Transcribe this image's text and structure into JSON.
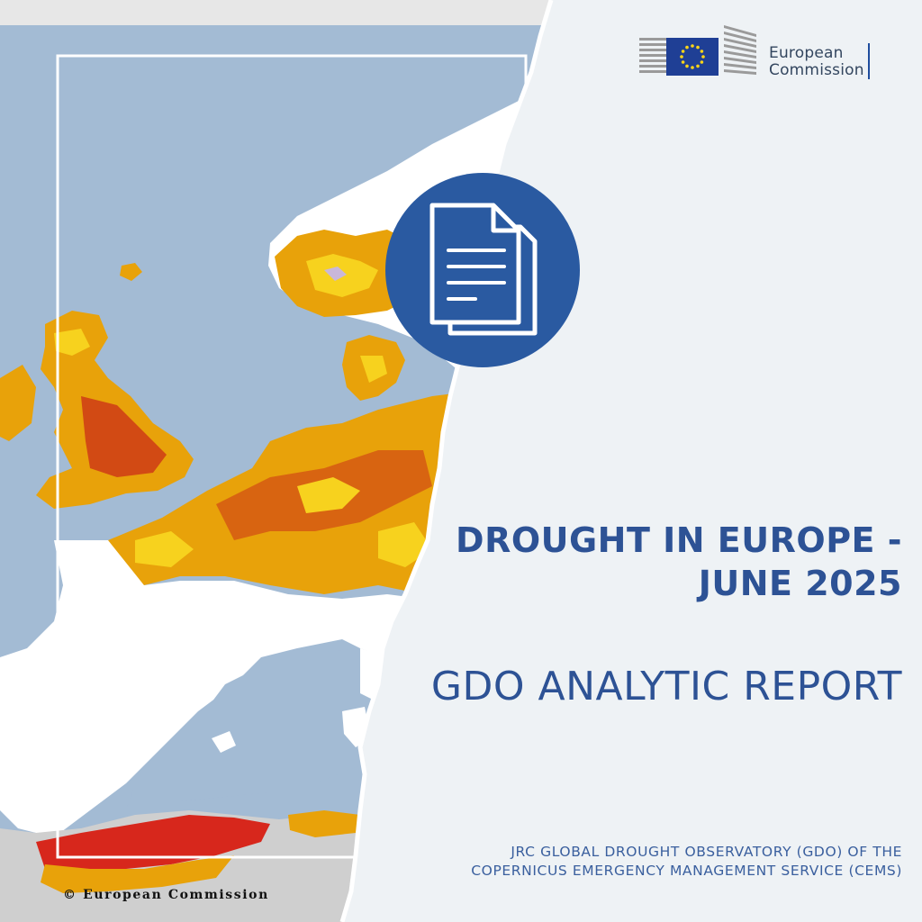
{
  "logo": {
    "line1": "European",
    "line2": "Commission"
  },
  "icons": {
    "document": "document-copy-icon",
    "emblem": "eu-flag-icon"
  },
  "headline": {
    "line1": "DROUGHT IN EUROPE -",
    "line2": "JUNE 2025"
  },
  "subheadline": "GDO ANALYTIC REPORT",
  "source": {
    "line1": "JRC GLOBAL DROUGHT OBSERVATORY (GDO) OF THE",
    "line2": "COPERNICUS EMERGENCY MANAGEMENT SERVICE (CEMS)"
  },
  "copyright": "© European Commission",
  "colors": {
    "brand_blue": "#2d5295",
    "circle_blue": "#2a5aa1",
    "sea": "#a3bbd4",
    "warning_yellow": "#f7d21e",
    "alert_orange": "#e8a20a",
    "alert_red": "#d7271c",
    "paper": "#eef2f5"
  }
}
